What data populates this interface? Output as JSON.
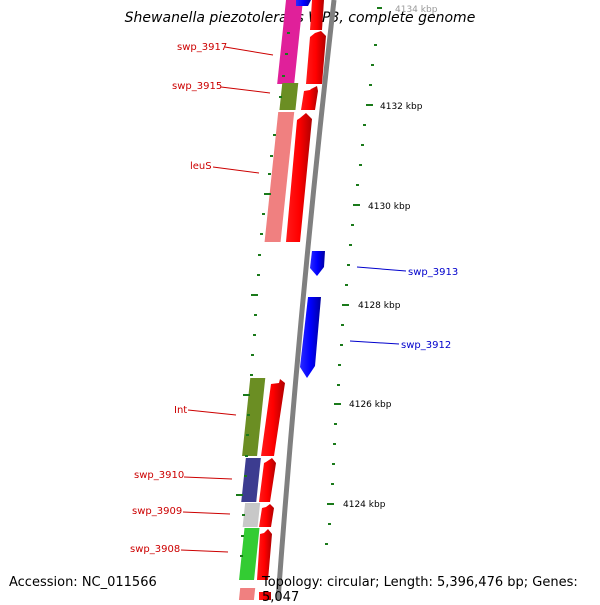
{
  "title": "Shewanella piezotolerans WP3, complete genome",
  "accession": "Accession: NC_011566",
  "topology": "Topology: circular; Length: 5,396,476 bp; Genes: 5,047",
  "top_partial_tick": "4134 kbp",
  "kbp_ticks": [
    "4132 kbp",
    "4130 kbp",
    "4128 kbp",
    "4126 kbp",
    "4124 kbp"
  ],
  "genes": {
    "swp_3917": "swp_3917",
    "swp_3915": "swp_3915",
    "leuS": "leuS",
    "swp_3913": "swp_3913",
    "swp_3912": "swp_3912",
    "Int": "Int",
    "swp_3910": "swp_3910",
    "swp_3909": "swp_3909",
    "swp_3908": "swp_3908"
  },
  "colors": {
    "forward_strand": "#ff0000",
    "reverse_strand": "#0000ff",
    "backbone": "#808080",
    "tick": "#1a7a1a",
    "magenta": "#e0209a",
    "olive": "#6b8e23",
    "salmon": "#f08080",
    "navy": "#3c3c90",
    "grey": "#c8c8c8",
    "green": "#33cc33"
  }
}
